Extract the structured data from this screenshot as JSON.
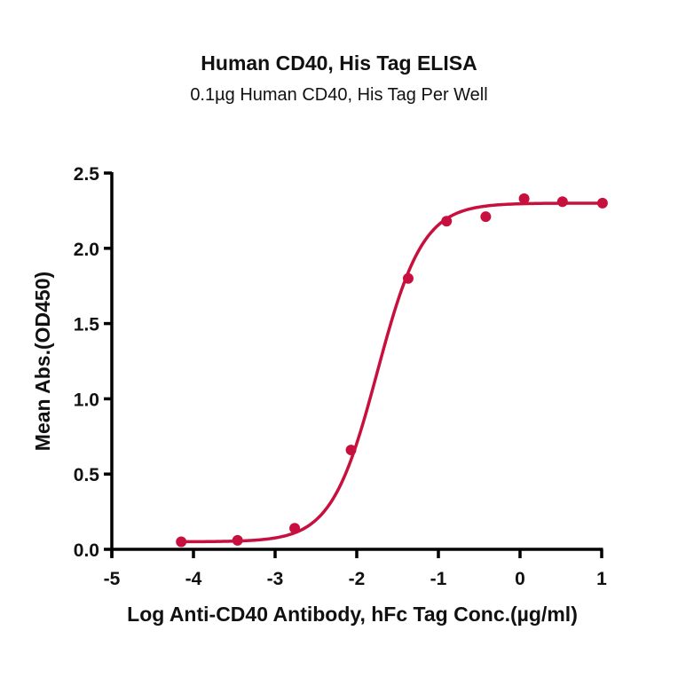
{
  "chart": {
    "title": "Human CD40, His Tag ELISA",
    "subtitle": "0.1µg Human CD40, His Tag Per Well",
    "xlabel": "Log Anti-CD40 Antibody, hFc Tag Conc.(µg/ml)",
    "ylabel": "Mean Abs.(OD450)",
    "color": "#c8103e"
  },
  "chart_data": {
    "type": "scatter",
    "title": "Human CD40, His Tag ELISA",
    "subtitle": "0.1µg Human CD40, His Tag Per Well",
    "xlabel": "Log Anti-CD40 Antibody, hFc Tag Conc.(µg/ml)",
    "ylabel": "Mean Abs.(OD450)",
    "xlim": [
      -5,
      1
    ],
    "ylim": [
      0,
      2.5
    ],
    "xticks": [
      "-5",
      "-4",
      "-3",
      "-2",
      "-1",
      "0",
      "1"
    ],
    "yticks": [
      "0.0",
      "0.5",
      "1.0",
      "1.5",
      "2.0",
      "2.5"
    ],
    "grid": false,
    "legend": null,
    "series": [
      {
        "name": "Human CD40, His Tag",
        "color": "#c8103e",
        "x": [
          -4.15,
          -3.46,
          -2.76,
          -2.07,
          -1.37,
          -0.9,
          -0.42,
          0.05,
          0.52,
          1.01
        ],
        "y": [
          0.05,
          0.06,
          0.14,
          0.66,
          1.8,
          2.18,
          2.21,
          2.33,
          2.31,
          2.3
        ]
      }
    ],
    "fit": {
      "type": "4PL sigmoid",
      "bottom": 0.05,
      "top": 2.3,
      "logEC50": -1.75,
      "hillslope": 1.55
    }
  }
}
